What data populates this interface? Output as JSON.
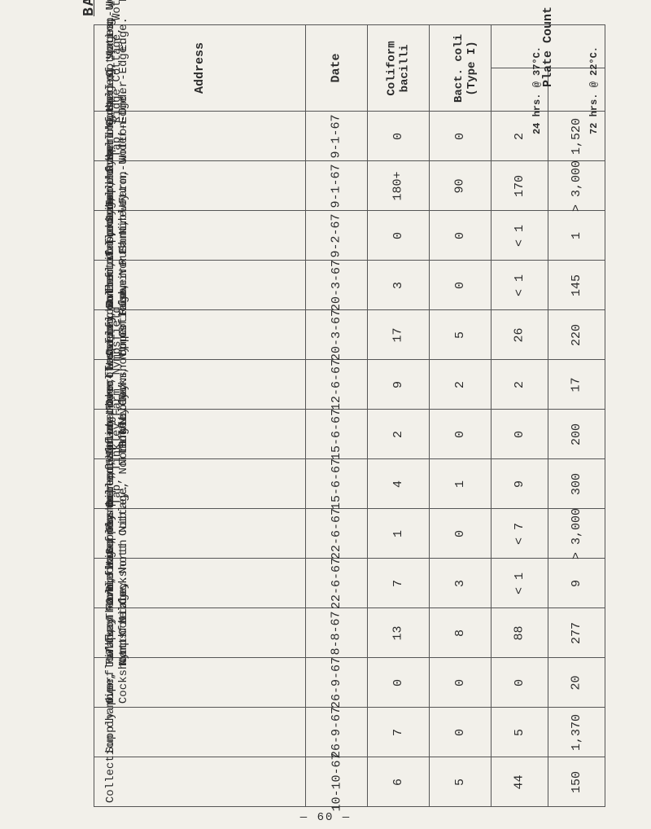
{
  "title": "BACTERIOLOGICAL EXAMINATION OF SAMPLES TAKEN FROM PRIVATE SUPPLIES.",
  "headers": {
    "address": "Address",
    "date": "Date",
    "coliform": "Coliform\nbacilli",
    "bact": "Bact. coli\n(Type I)",
    "plate": "Plate Count",
    "plate24": "24 hrs. @ 37°C.",
    "plate72": "72 hrs. @ 22°C."
  },
  "rows": [
    {
      "addr": "Tap, Ridge Cottage, Wotton-Under-Edge",
      "date": "9-1-67",
      "coliform": "0",
      "bact": "0",
      "p24": "2",
      "p72": "1,520"
    },
    {
      "addr": "Tap, Symond's Hall Cottages, Wotton-Under-\n                              Edge.",
      "date": "9-1-67",
      "coliform": "180+",
      "bact": "90",
      "p24": "170",
      "p72": "> 3,000"
    },
    {
      "addr": "Tap, Symond's Hall Cottages, Wotton-Under-\n                              Edge.",
      "date": "9-2-67",
      "coliform": "0",
      "bact": "0",
      "p24": "< 1",
      "p72": "1"
    },
    {
      "addr": "Overflow from collection chamber of spring,\nLower Rushmire Farm, Wotton-Under-Edge.",
      "date": "20-3-67",
      "coliform": "3",
      "bact": "0",
      "p24": "< 1",
      "p72": "145"
    },
    {
      "addr": "Overflow from collection chamber of spring,\nUpper Rushmire Farm, Wotton-Under-Edge.",
      "date": "20-3-67",
      "coliform": "17",
      "bact": "5",
      "p24": "26",
      "p72": "220"
    },
    {
      "addr": "Overflow from collection chamber of spring,\nCockshott Cottage, North Nibley.",
      "date": "12-6-67",
      "coliform": "9",
      "bact": "2",
      "p24": "2",
      "p72": "17"
    },
    {
      "addr": "Inlet to collection chamber of spring,\nTinkley Farm, Nympsfield.",
      "date": "15-6-67",
      "coliform": "2",
      "bact": "0",
      "p24": "0",
      "p72": "200"
    },
    {
      "addr": "Tap, Tinkley Farm, Nympsfield.",
      "date": "15-6-67",
      "coliform": "4",
      "bact": "1",
      "p24": "9",
      "p72": "300"
    },
    {
      "addr": "Supply pipe, Halfway Farm, Waterley Bottom,\n             North Nibley.",
      "date": "22-6-67",
      "coliform": "1",
      "bact": "0",
      "p24": "< 7",
      "p72": "> 3,000"
    },
    {
      "addr": "Overflow from collection chamber of spring,\nCockshott Cottage, North Nibley.",
      "date": "22-6-67",
      "coliform": "7",
      "bact": "3",
      "p24": "< 1",
      "p72": "9"
    },
    {
      "addr": "Tap, The Ridings, Rushmire, Wotton-Under-\n                              Edge.",
      "date": "8-8-67",
      "coliform": "13",
      "bact": "8",
      "p24": "88",
      "p72": "277"
    },
    {
      "addr": "Overflow from collection chamber of spring,\nCockshott Cottage, North Nibley.",
      "date": "26-9-67",
      "coliform": "0",
      "bact": "0",
      "p24": "0",
      "p72": "20"
    },
    {
      "addr": "Supply pipe, Halfway Farm, Waterley Bottom,\n             North Nibley.",
      "date": "26-9-67",
      "coliform": "7",
      "bact": "0",
      "p24": "5",
      "p72": "1,370"
    },
    {
      "addr": "Collection chamber, Tinkley Farm,\n                    Nympsfield.",
      "date": "10-10-67",
      "coliform": "6",
      "bact": "5",
      "p24": "44",
      "p72": "150"
    }
  ],
  "footer": "— 60 —"
}
